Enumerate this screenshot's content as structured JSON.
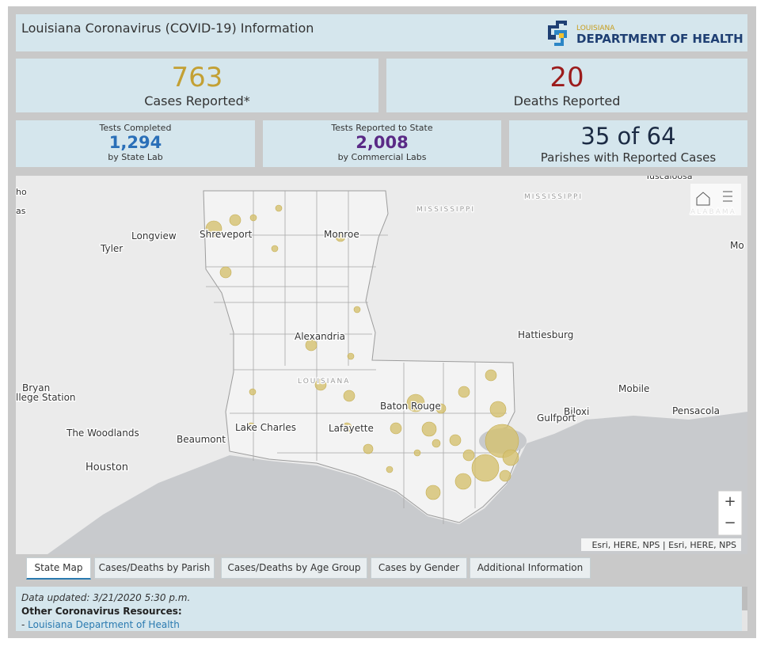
{
  "header": {
    "title": "Louisiana Coronavirus (COVID-19) Information",
    "logo_top": "LOUISIANA",
    "logo_main": "DEPARTMENT OF HEALTH"
  },
  "stats": [
    {
      "value": "763",
      "label": "Cases Reported*"
    },
    {
      "value": "20",
      "label": "Deaths Reported"
    }
  ],
  "tests": [
    {
      "title": "Tests Completed",
      "value": "1,294",
      "subtitle": "by State Lab"
    },
    {
      "title": "Tests Reported to State",
      "value": "2,008",
      "subtitle": "by Commercial Labs"
    }
  ],
  "parishes": {
    "value": "35 of 64",
    "label": "Parishes with Reported Cases"
  },
  "map": {
    "labels": [
      "ho",
      "as",
      "Longview",
      "Tyler",
      "Shreveport",
      "Monroe",
      "MISSISSIPPI",
      "MISSISSIPPI",
      "ALABAMA",
      "Mo",
      "Tuscaloosa",
      "Hattiesburg",
      "Alexandria",
      "LOUISIANA",
      "Bryan",
      "llege Station",
      "Mobile",
      "Pensacola",
      "Biloxi",
      "Gulfport",
      "Baton Rouge",
      "The Woodlands",
      "Beaumont",
      "Lake Charles",
      "Lafayette",
      "Houston"
    ],
    "attribution": "Esri, HERE, NPS | Esri, HERE, NPS",
    "zoom_in": "+",
    "zoom_out": "−"
  },
  "tabs": [
    "State Map",
    "Cases/Deaths by Parish",
    "Cases/Deaths by Age Group",
    "Cases by Gender",
    "Additional Information"
  ],
  "footer": {
    "updated": "Data updated: 3/21/2020 5:30 p.m.",
    "resources": "Other Coronavirus Resources:",
    "link_prefix": "- ",
    "link": "Louisiana Department of Health"
  }
}
